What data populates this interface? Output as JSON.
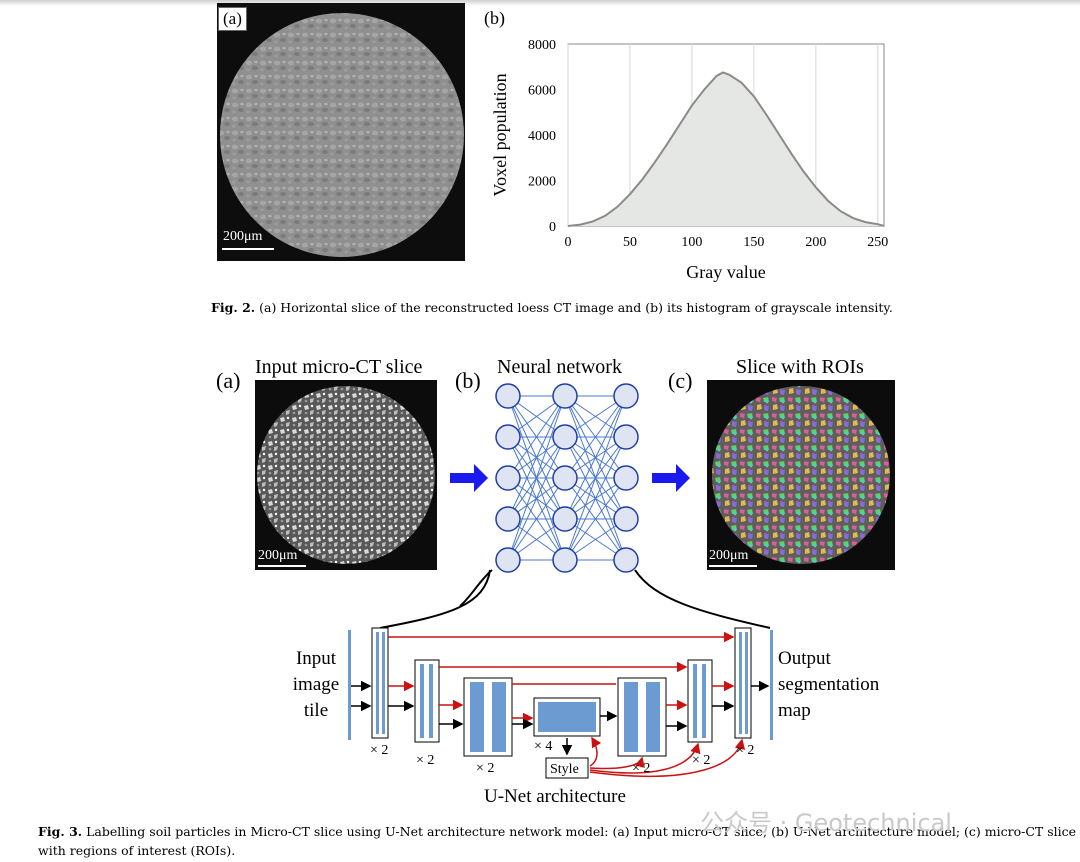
{
  "figure2": {
    "panel_a_label": "(a)",
    "panel_a_scale": "200μm",
    "panel_b_label": "(b)",
    "caption_lead": "Fig. 2.",
    "caption_text": "(a) Horizontal slice of the reconstructed loess CT image and (b) its histogram of grayscale intensity."
  },
  "chart_data": {
    "type": "area",
    "xlabel": "Gray value",
    "ylabel": "Voxel population",
    "xlim": [
      0,
      255
    ],
    "ylim": [
      0,
      8000
    ],
    "xticks": [
      0,
      50,
      100,
      150,
      200,
      250
    ],
    "yticks": [
      0,
      2000,
      4000,
      6000,
      8000
    ],
    "grid": "vertical",
    "x": [
      0,
      10,
      20,
      30,
      40,
      50,
      60,
      70,
      80,
      90,
      100,
      110,
      120,
      125,
      130,
      140,
      150,
      160,
      170,
      180,
      190,
      200,
      210,
      220,
      230,
      240,
      250,
      255
    ],
    "y": [
      0,
      60,
      200,
      450,
      850,
      1400,
      2050,
      2800,
      3600,
      4450,
      5300,
      6000,
      6600,
      6750,
      6650,
      6300,
      5700,
      4900,
      4050,
      3200,
      2400,
      1700,
      1100,
      650,
      350,
      170,
      80,
      0
    ]
  },
  "figure3": {
    "panel_a_label": "(a)",
    "panel_a_title": "Input micro-CT slice",
    "panel_b_label": "(b)",
    "panel_b_title": "Neural network",
    "panel_c_label": "(c)",
    "panel_c_title": "Slice with ROIs",
    "scale_a": "200μm",
    "scale_c": "200μm",
    "input_lines": [
      "Input",
      "image",
      "tile"
    ],
    "output_lines": [
      "Output",
      "segmentation",
      "map"
    ],
    "mult_1": "× 2",
    "mult_2": "× 2",
    "mult_3": "× 2",
    "mult_4": "× 4",
    "mult_5": "× 2",
    "mult_6": "× 2",
    "mult_7": "× 2",
    "style_label": "Style",
    "unet_title": "U-Net architecture",
    "caption_lead": "Fig. 3.",
    "caption_line1": "Labelling soil particles in Micro-CT slice using U-Net architecture network model: (a) Input micro-CT slice; (b) U-Net architecture model; (c) micro-CT slice",
    "caption_line2": "with regions of interest (ROIs)."
  },
  "watermark": "公众号 · Geotechnical",
  "colors": {
    "unet_blue": "#6c9bd2",
    "red_arrow": "#cc1111",
    "net_node": "#dfe4f3",
    "net_edge": "#4a78d0",
    "arrow_blue": "#1a1aee"
  }
}
